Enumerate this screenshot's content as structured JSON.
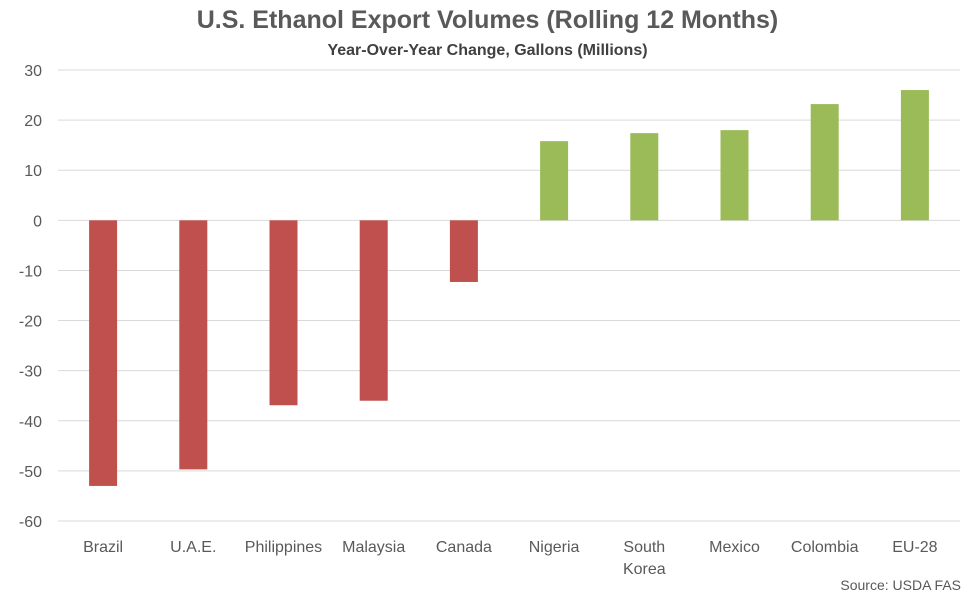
{
  "chart_data": {
    "type": "bar",
    "title": "U.S. Ethanol Export Volumes (Rolling 12 Months)",
    "subtitle": "Year-Over-Year Change, Gallons (Millions)",
    "categories": [
      "Brazil",
      "U.A.E.",
      "Philippines",
      "Malaysia",
      "Canada",
      "Nigeria",
      "South Korea",
      "Mexico",
      "Colombia",
      "EU-28"
    ],
    "values": [
      -53,
      -49.7,
      -36.9,
      -36,
      -12.3,
      15.8,
      17.4,
      18,
      23.2,
      26
    ],
    "ylim": [
      -60,
      30
    ],
    "yticks": [
      30,
      20,
      10,
      0,
      -10,
      -20,
      -30,
      -40,
      -50,
      -60
    ],
    "grid": true,
    "legend": "none",
    "colors": {
      "negative": "#C0504D",
      "positive": "#9BBB59",
      "grid": "#D9D9D9"
    }
  },
  "source": "Source: USDA FAS"
}
